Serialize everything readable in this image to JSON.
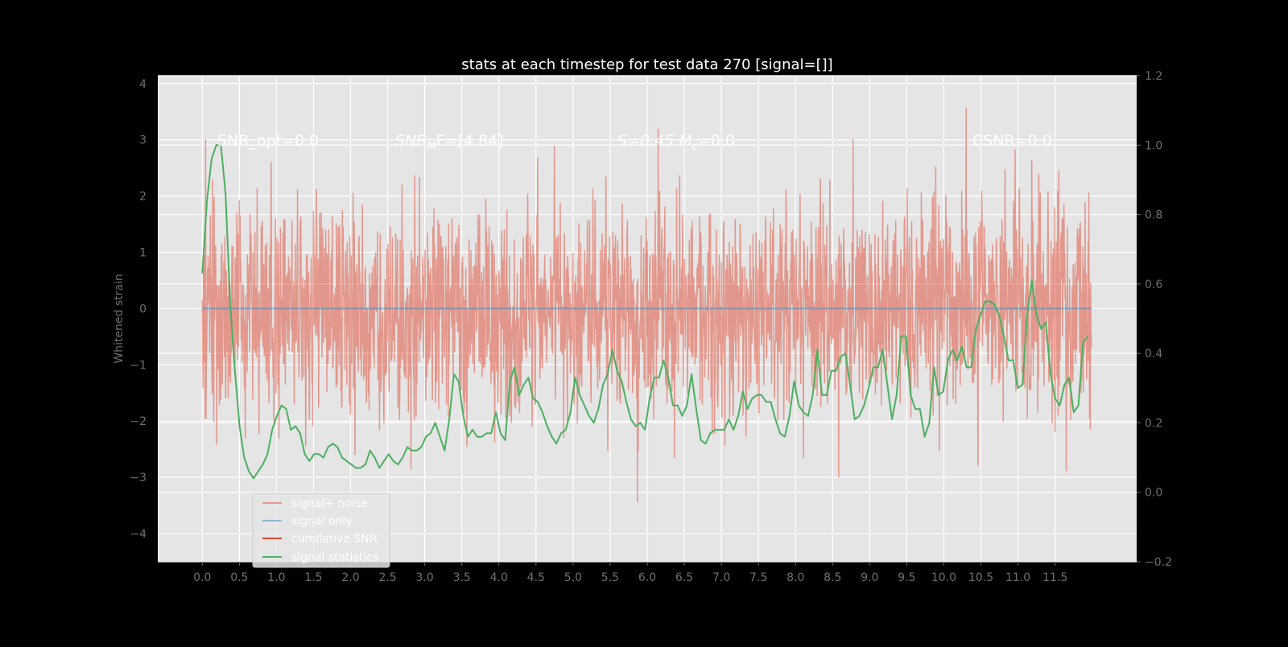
{
  "chart_data": {
    "type": "line",
    "title": "stats at each timestep for test data 270 [signal=[]]",
    "xlabel": "",
    "ylabel": "Whitened strain",
    "xlim": [
      -0.6,
      12.6
    ],
    "ylim": [
      -4.5,
      4.14
    ],
    "y2lim": [
      -0.2,
      1.2
    ],
    "grid": true,
    "xticks": [
      "0.0",
      "0.5",
      "1.0",
      "1.5",
      "2.0",
      "2.5",
      "3.0",
      "3.5",
      "4.0",
      "4.5",
      "5.0",
      "5.5",
      "6.0",
      "6.5",
      "7.0",
      "7.5",
      "8.0",
      "8.5",
      "9.0",
      "9.5",
      "10.0",
      "10.5",
      "11.0",
      "11.5"
    ],
    "yticks": [
      "4",
      "3",
      "2",
      "1",
      "0",
      "−1",
      "−2",
      "−3",
      "−4"
    ],
    "y2ticks": [
      "1.2",
      "1.0",
      "0.8",
      "0.6",
      "0.4",
      "0.2",
      "0.0",
      "−0.2"
    ],
    "annotations": [
      {
        "text": "SNR_opt=0.0",
        "x": 0.2,
        "y": 3.0
      },
      {
        "text_main": "SNR",
        "text_sub": "M",
        "text_rest": "F=[4.84]",
        "x": 2.6,
        "y": 3.0
      },
      {
        "text_main": "S=0.45   M",
        "text_sub": "c",
        "text_rest": "=0.0",
        "x": 5.6,
        "y": 3.0
      },
      {
        "text": "CSNR=0.0",
        "x": 10.4,
        "y": 3.0
      }
    ],
    "legend": {
      "placement": "lower-left",
      "entries": [
        {
          "label": "signal+ noise",
          "color": "#E24A33"
        },
        {
          "label": "signal only",
          "color": "#348ABD"
        },
        {
          "label": "cumilative SNR",
          "color": "#E24A33"
        },
        {
          "label": "signal statistics",
          "color": "#4CAF60"
        }
      ]
    },
    "series": [
      {
        "name": "signal+ noise",
        "axis": "left",
        "color": "#E24A33",
        "x_range": [
          0,
          11.99
        ],
        "n_samples": 2400,
        "approx_std": 0.95,
        "seed": 270
      },
      {
        "name": "signal only",
        "axis": "left",
        "color": "#348ABD",
        "x": [
          0,
          11.99
        ],
        "values": [
          0,
          0
        ]
      },
      {
        "name": "cumilative SNR",
        "axis": "left",
        "color": "#E24A33",
        "x": [
          6.0,
          6.0
        ],
        "values": [
          -0.5,
          1.2
        ]
      },
      {
        "name": "signal statistics",
        "axis": "right",
        "color": "#4CAF60",
        "x_range": [
          0,
          11.94
        ],
        "values": [
          0.63,
          0.84,
          0.96,
          1.0,
          1.0,
          0.86,
          0.54,
          0.35,
          0.19,
          0.1,
          0.06,
          0.04,
          0.06,
          0.08,
          0.11,
          0.18,
          0.22,
          0.25,
          0.24,
          0.18,
          0.19,
          0.17,
          0.11,
          0.09,
          0.11,
          0.11,
          0.1,
          0.13,
          0.14,
          0.13,
          0.1,
          0.09,
          0.08,
          0.07,
          0.07,
          0.08,
          0.12,
          0.1,
          0.07,
          0.09,
          0.11,
          0.09,
          0.08,
          0.1,
          0.13,
          0.12,
          0.12,
          0.13,
          0.16,
          0.17,
          0.2,
          0.16,
          0.12,
          0.21,
          0.34,
          0.32,
          0.22,
          0.16,
          0.18,
          0.16,
          0.16,
          0.17,
          0.17,
          0.23,
          0.17,
          0.15,
          0.32,
          0.36,
          0.28,
          0.31,
          0.33,
          0.27,
          0.26,
          0.23,
          0.19,
          0.16,
          0.14,
          0.17,
          0.18,
          0.23,
          0.33,
          0.28,
          0.25,
          0.22,
          0.2,
          0.24,
          0.31,
          0.34,
          0.41,
          0.35,
          0.32,
          0.26,
          0.21,
          0.19,
          0.2,
          0.18,
          0.27,
          0.33,
          0.33,
          0.38,
          0.33,
          0.25,
          0.25,
          0.22,
          0.25,
          0.34,
          0.24,
          0.15,
          0.14,
          0.17,
          0.18,
          0.18,
          0.18,
          0.21,
          0.18,
          0.22,
          0.29,
          0.24,
          0.27,
          0.28,
          0.28,
          0.26,
          0.26,
          0.21,
          0.17,
          0.16,
          0.22,
          0.32,
          0.25,
          0.23,
          0.22,
          0.28,
          0.41,
          0.28,
          0.28,
          0.35,
          0.35,
          0.39,
          0.4,
          0.31,
          0.21,
          0.22,
          0.25,
          0.3,
          0.36,
          0.36,
          0.41,
          0.31,
          0.21,
          0.28,
          0.45,
          0.45,
          0.28,
          0.24,
          0.24,
          0.16,
          0.2,
          0.36,
          0.28,
          0.29,
          0.38,
          0.41,
          0.38,
          0.42,
          0.36,
          0.36,
          0.47,
          0.51,
          0.55,
          0.55,
          0.54,
          0.51,
          0.45,
          0.38,
          0.38,
          0.3,
          0.31,
          0.51,
          0.61,
          0.51,
          0.47,
          0.49,
          0.34,
          0.27,
          0.25,
          0.31,
          0.33,
          0.23,
          0.25,
          0.43,
          0.45
        ]
      }
    ]
  }
}
